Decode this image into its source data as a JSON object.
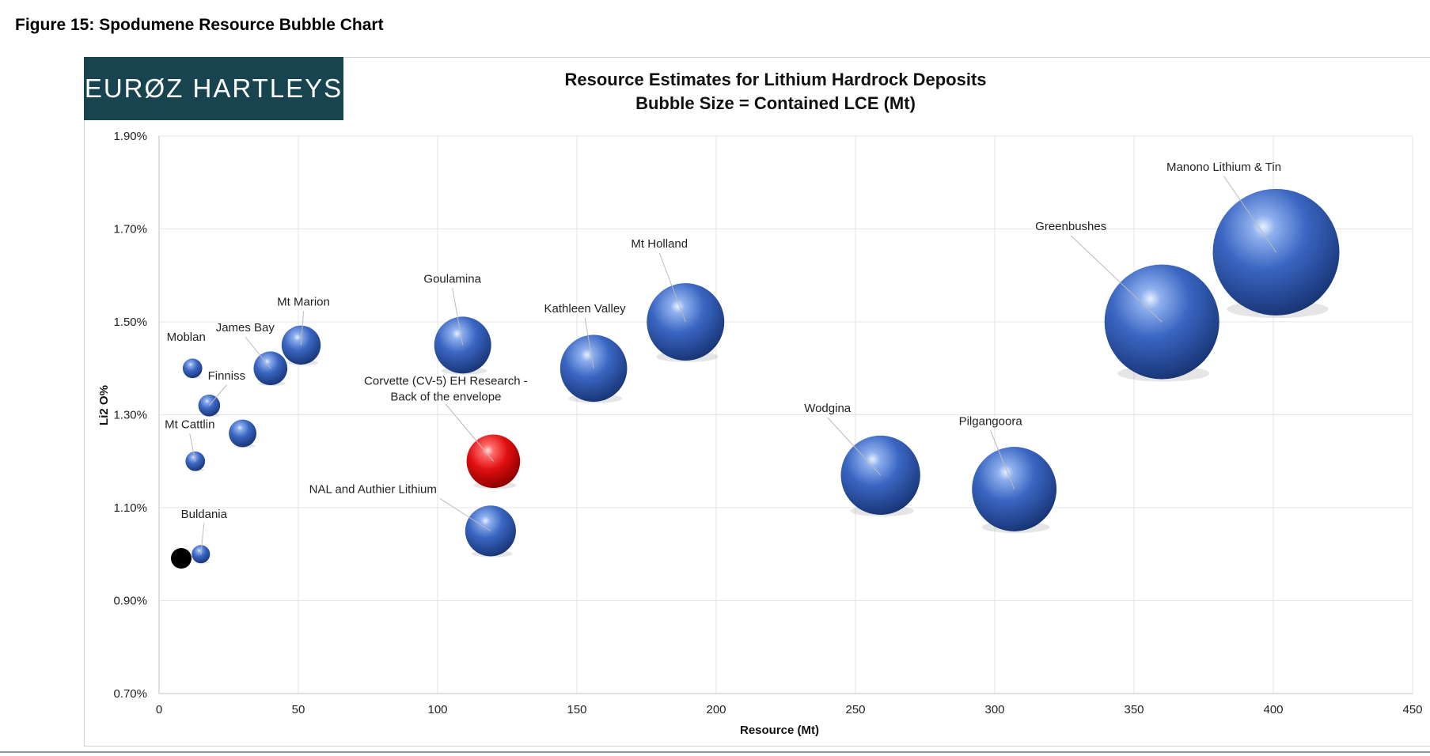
{
  "figure_title": "Figure 15:  Spodumene Resource Bubble Chart",
  "logo_text": "EURØZ HARTLEYS",
  "colors": {
    "bubble": "#3a66c2",
    "highlight": "#e01010",
    "logo_bg": "#17444f",
    "marker": "#000000"
  },
  "chart_data": {
    "type": "bubble",
    "title": "Resource Estimates for Lithium Hardrock Deposits",
    "subtitle": "Bubble Size = Contained LCE (Mt)",
    "xlabel": "Resource (Mt)",
    "ylabel": "Li2 O%",
    "xlim": [
      0,
      450
    ],
    "ylim": [
      0.007,
      0.019
    ],
    "x_ticks": [
      "0",
      "50",
      "100",
      "150",
      "200",
      "250",
      "300",
      "350",
      "400",
      "450"
    ],
    "y_ticks": [
      "0.70%",
      "0.90%",
      "1.10%",
      "1.30%",
      "1.50%",
      "1.70%",
      "1.90%"
    ],
    "grid": true,
    "series": [
      {
        "name": "Moblan",
        "x": 12,
        "y": 0.014,
        "size": 0.4,
        "color": "blue"
      },
      {
        "name": "Finniss",
        "x": 18,
        "y": 0.0132,
        "size": 0.5,
        "color": "blue"
      },
      {
        "name": "Mt Cattlin",
        "x": 13,
        "y": 0.012,
        "size": 0.4,
        "color": "blue"
      },
      {
        "name": "",
        "x": 30,
        "y": 0.0126,
        "size": 0.8,
        "color": "blue"
      },
      {
        "name": "Buldania",
        "x": 15,
        "y": 0.01,
        "size": 0.35,
        "color": "blue"
      },
      {
        "name": "James Bay",
        "x": 40,
        "y": 0.014,
        "size": 1.2,
        "color": "blue"
      },
      {
        "name": "Mt Marion",
        "x": 51,
        "y": 0.0145,
        "size": 1.6,
        "color": "blue"
      },
      {
        "name": "Goulamina",
        "x": 109,
        "y": 0.0145,
        "size": 3.4,
        "color": "blue"
      },
      {
        "name": "Corvette (CV-5) EH Research - Back of the envelope",
        "x": 120,
        "y": 0.012,
        "size": 3.0,
        "color": "red"
      },
      {
        "name": "NAL and Authier Lithium",
        "x": 119,
        "y": 0.0105,
        "size": 2.7,
        "color": "blue"
      },
      {
        "name": "Kathleen Valley",
        "x": 156,
        "y": 0.014,
        "size": 4.7,
        "color": "blue"
      },
      {
        "name": "Mt Holland",
        "x": 189,
        "y": 0.015,
        "size": 6.3,
        "color": "blue"
      },
      {
        "name": "Wodgina",
        "x": 259,
        "y": 0.0117,
        "size": 6.6,
        "color": "blue"
      },
      {
        "name": "Pilgangoora",
        "x": 307,
        "y": 0.0114,
        "size": 7.5,
        "color": "blue"
      },
      {
        "name": "Greenbushes",
        "x": 360,
        "y": 0.015,
        "size": 13.8,
        "color": "blue"
      },
      {
        "name": "Manono Lithium & Tin",
        "x": 401,
        "y": 0.0165,
        "size": 16.8,
        "color": "blue"
      }
    ]
  }
}
